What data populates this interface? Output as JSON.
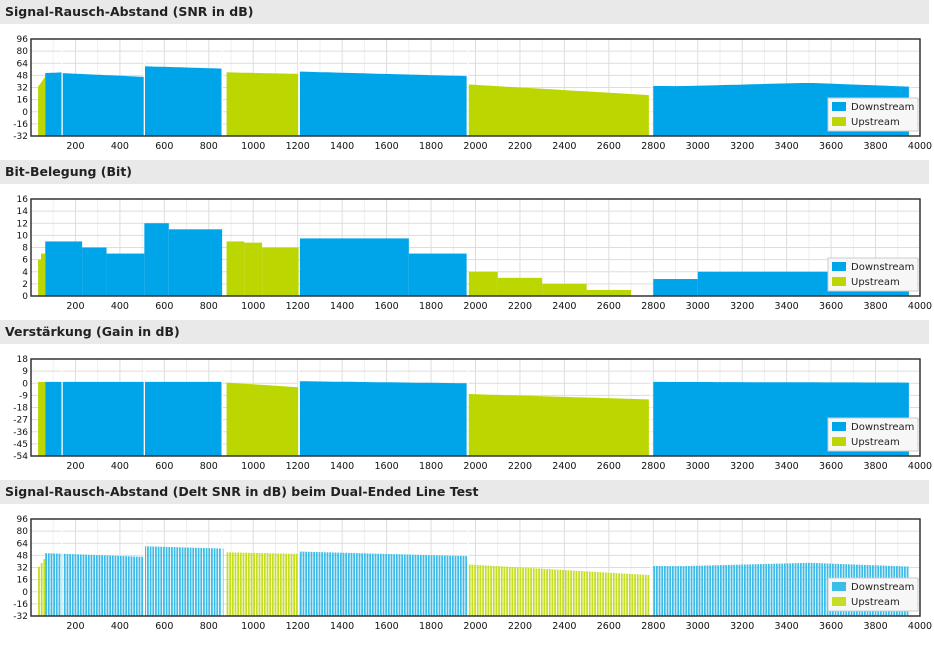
{
  "colors": {
    "downstream": "#00a4e8",
    "upstream": "#bbd600",
    "delt_downstream": "#3cbde8",
    "delt_upstream": "#c6de22",
    "header_bg": "#e9e9e9",
    "grid": "#dddddd"
  },
  "legend": {
    "downstream": "Downstream",
    "upstream": "Upstream"
  },
  "chart_data": [
    {
      "type": "bar",
      "title": "Signal-Rausch-Abstand (SNR in dB)",
      "xlim": [
        0,
        4000
      ],
      "xticks": [
        200,
        400,
        600,
        800,
        1000,
        1200,
        1400,
        1600,
        1800,
        2000,
        2200,
        2400,
        2600,
        2800,
        3000,
        3200,
        3400,
        3600,
        3800,
        4000
      ],
      "ylim": [
        -32,
        96
      ],
      "yticks": [
        -32,
        -16,
        0,
        16,
        32,
        48,
        64,
        80,
        96
      ],
      "style": "solid",
      "series": [
        {
          "name": "Upstream",
          "color": "#bbd600",
          "segments": [
            [
              32,
              63,
              [
                33,
                46
              ]
            ],
            [
              880,
              1204,
              [
                52,
                50
              ]
            ],
            [
              1970,
              2780,
              [
                36,
                22
              ]
            ]
          ]
        },
        {
          "name": "Downstream",
          "color": "#00a4e8",
          "segments": [
            [
              64,
              140,
              [
                51,
                52
              ]
            ],
            [
              140,
              510,
              [
                51,
                46
              ]
            ],
            [
              510,
              860,
              [
                60,
                57
              ]
            ],
            [
              1210,
              1960,
              [
                53,
                47
              ]
            ],
            [
              2800,
              3950,
              [
                34,
                32
              ],
              {
                "hump": [
                  3500,
                  40
                ]
              }
            ]
          ]
        }
      ]
    },
    {
      "type": "bar",
      "title": "Bit-Belegung (Bit)",
      "xlim": [
        0,
        4000
      ],
      "xticks": [
        200,
        400,
        600,
        800,
        1000,
        1200,
        1400,
        1600,
        1800,
        2000,
        2200,
        2400,
        2600,
        2800,
        3000,
        3200,
        3400,
        3600,
        3800,
        4000
      ],
      "ylim": [
        0,
        16
      ],
      "yticks": [
        0,
        2,
        4,
        6,
        8,
        10,
        12,
        14,
        16
      ],
      "style": "step",
      "series": [
        {
          "name": "Upstream",
          "color": "#bbd600",
          "steps": [
            [
              32,
              45,
              6
            ],
            [
              45,
              63,
              7
            ],
            [
              880,
              960,
              9
            ],
            [
              960,
              1040,
              8.8
            ],
            [
              1040,
              1204,
              8
            ],
            [
              1970,
              2100,
              4
            ],
            [
              2100,
              2300,
              3
            ],
            [
              2300,
              2500,
              2
            ],
            [
              2500,
              2700,
              1
            ]
          ]
        },
        {
          "name": "Downstream",
          "color": "#00a4e8",
          "steps": [
            [
              64,
              230,
              9
            ],
            [
              230,
              340,
              8
            ],
            [
              340,
              510,
              7
            ],
            [
              510,
              620,
              12
            ],
            [
              620,
              860,
              11
            ],
            [
              1210,
              1700,
              9.5
            ],
            [
              1700,
              1960,
              7
            ],
            [
              2800,
              3000,
              2.8
            ],
            [
              3000,
              3950,
              4
            ]
          ]
        }
      ]
    },
    {
      "type": "bar",
      "title": "Verstärkung (Gain in dB)",
      "xlim": [
        0,
        4000
      ],
      "xticks": [
        200,
        400,
        600,
        800,
        1000,
        1200,
        1400,
        1600,
        1800,
        2000,
        2200,
        2400,
        2600,
        2800,
        3000,
        3200,
        3400,
        3600,
        3800,
        4000
      ],
      "ylim": [
        -54,
        18
      ],
      "yticks": [
        -54,
        -45,
        -36,
        -27,
        -18,
        -9,
        0,
        9,
        18
      ],
      "style": "solid",
      "series": [
        {
          "name": "Upstream",
          "color": "#bbd600",
          "segments": [
            [
              32,
              63,
              [
                1,
                1
              ]
            ],
            [
              880,
              1204,
              [
                0.5,
                -3
              ]
            ],
            [
              1970,
              2780,
              [
                -8,
                -12
              ]
            ]
          ]
        },
        {
          "name": "Downstream",
          "color": "#00a4e8",
          "segments": [
            [
              64,
              860,
              [
                1,
                1
              ]
            ],
            [
              1210,
              1960,
              [
                1.5,
                0
              ]
            ],
            [
              2800,
              3950,
              [
                1,
                0.5
              ]
            ]
          ]
        }
      ]
    },
    {
      "type": "bar",
      "title": "Signal-Rausch-Abstand (Delt SNR in dB) beim Dual-Ended Line Test",
      "xlim": [
        0,
        4000
      ],
      "xticks": [
        200,
        400,
        600,
        800,
        1000,
        1200,
        1400,
        1600,
        1800,
        2000,
        2200,
        2400,
        2600,
        2800,
        3000,
        3200,
        3400,
        3600,
        3800,
        4000
      ],
      "ylim": [
        -32,
        96
      ],
      "yticks": [
        -32,
        -16,
        0,
        16,
        32,
        48,
        64,
        80,
        96
      ],
      "style": "striped",
      "series": [
        {
          "name": "Upstream",
          "color": "#c6de22",
          "segments": [
            [
              32,
              63,
              [
                33,
                46
              ]
            ],
            [
              880,
              1204,
              [
                52,
                50
              ]
            ],
            [
              1970,
              2780,
              [
                36,
                22
              ]
            ]
          ]
        },
        {
          "name": "Downstream",
          "color": "#3cbde8",
          "segments": [
            [
              64,
              510,
              [
                51,
                46
              ]
            ],
            [
              510,
              860,
              [
                60,
                57
              ]
            ],
            [
              1210,
              1960,
              [
                53,
                47
              ]
            ],
            [
              2800,
              3950,
              [
                34,
                32
              ],
              {
                "hump": [
                  3500,
                  40
                ]
              }
            ]
          ]
        }
      ]
    }
  ]
}
